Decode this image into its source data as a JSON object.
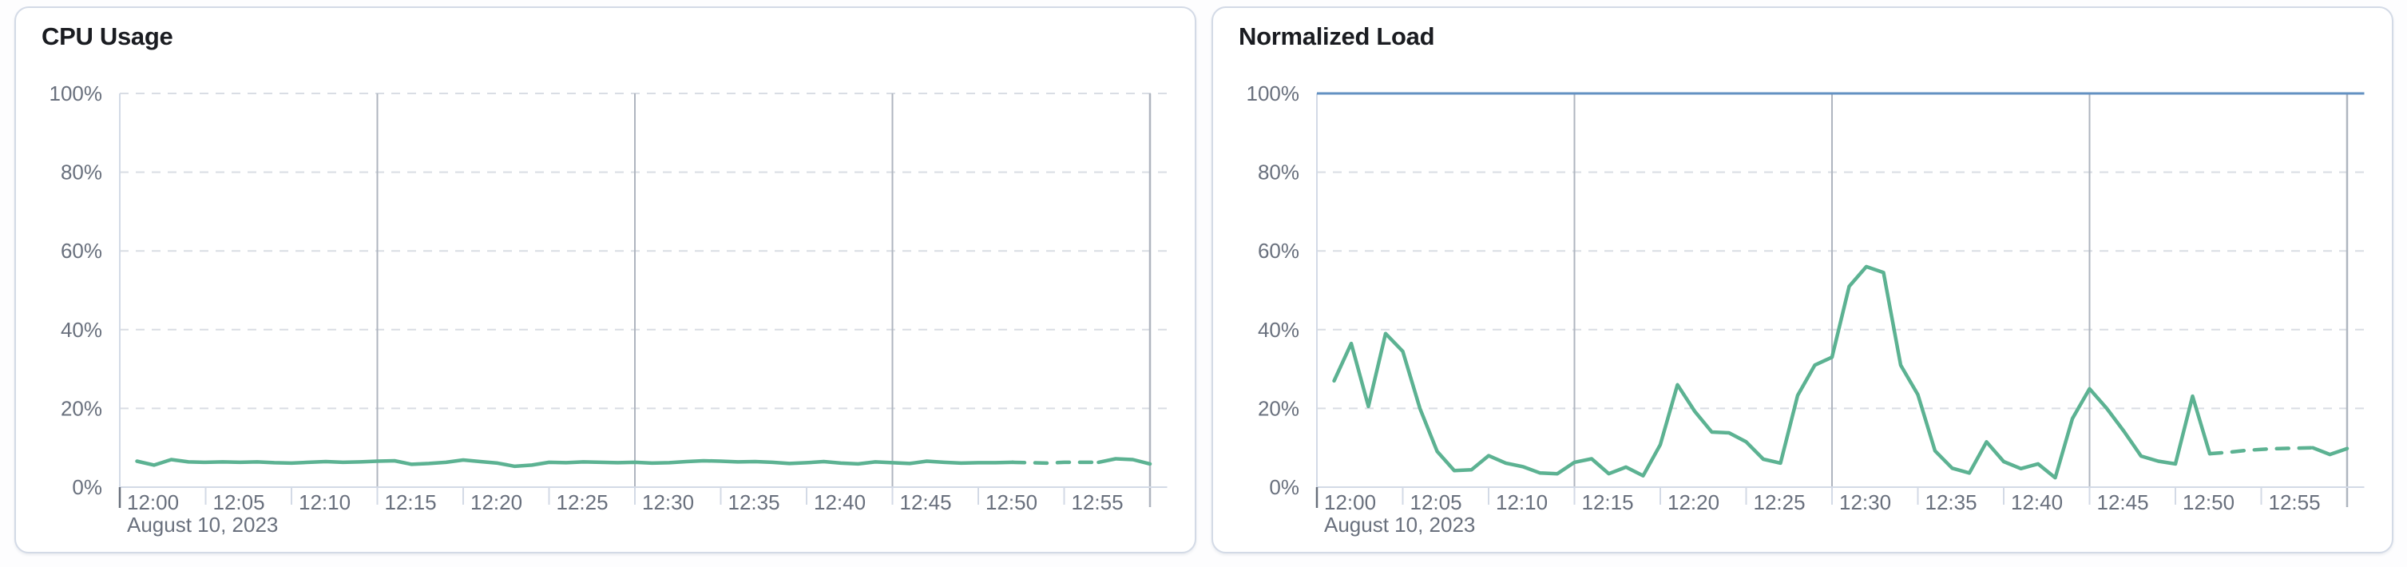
{
  "page": {
    "background": "#FDFDFE"
  },
  "palette": {
    "series_green": "#5CB292",
    "threshold_blue": "#6391C2",
    "grid_dashed": "#D9DDE4",
    "grid_solid": "#AFB5BF",
    "axis_line": "#D3DAE6",
    "axis_text": "#69707D",
    "origin_tick": "#69707D",
    "title_text": "#1A1C21",
    "card_border": "#D3DAE6",
    "card_background": "#FFFFFF"
  },
  "chart_data": [
    {
      "type": "line",
      "title": "CPU Usage",
      "xlabel": "",
      "ylabel": "",
      "ylim": [
        0,
        100
      ],
      "x_domain_minutes": [
        0,
        60
      ],
      "y_tick_labels": [
        "0%",
        "20%",
        "40%",
        "60%",
        "80%",
        "100%"
      ],
      "y_tick_values": [
        0,
        20,
        40,
        60,
        80,
        100
      ],
      "x_tick_labels": [
        "12:00",
        "12:05",
        "12:10",
        "12:15",
        "12:20",
        "12:25",
        "12:30",
        "12:35",
        "12:40",
        "12:45",
        "12:50",
        "12:55"
      ],
      "x_date_label": "August 10, 2023",
      "grid": "horizontal-dashed; vertical solid at 15-min marks and domain end",
      "legend_position": "none",
      "threshold_line_at": null,
      "series": [
        {
          "name": "cpu-usage-percent",
          "unit": "%",
          "start_minute": 1,
          "step_minutes": 1,
          "dash_from_minute": 52,
          "dash_to_minute": 57,
          "values": [
            6.6,
            5.6,
            7.0,
            6.4,
            6.3,
            6.4,
            6.3,
            6.4,
            6.2,
            6.1,
            6.3,
            6.5,
            6.3,
            6.4,
            6.6,
            6.7,
            5.8,
            6.0,
            6.3,
            6.9,
            6.5,
            6.1,
            5.3,
            5.6,
            6.3,
            6.2,
            6.4,
            6.3,
            6.2,
            6.3,
            6.1,
            6.2,
            6.5,
            6.7,
            6.6,
            6.4,
            6.5,
            6.3,
            6.0,
            6.2,
            6.5,
            6.1,
            5.9,
            6.4,
            6.2,
            6.0,
            6.6,
            6.3,
            6.1,
            6.2,
            6.2,
            6.3,
            6.2,
            6.1,
            6.3,
            6.3,
            6.3,
            7.2,
            7.0,
            5.9
          ]
        }
      ]
    },
    {
      "type": "line",
      "title": "Normalized Load",
      "xlabel": "",
      "ylabel": "",
      "ylim": [
        0,
        100
      ],
      "x_domain_minutes": [
        0,
        60
      ],
      "y_tick_labels": [
        "0%",
        "20%",
        "40%",
        "60%",
        "80%",
        "100%"
      ],
      "y_tick_values": [
        0,
        20,
        40,
        60,
        80,
        100
      ],
      "x_tick_labels": [
        "12:00",
        "12:05",
        "12:10",
        "12:15",
        "12:20",
        "12:25",
        "12:30",
        "12:35",
        "12:40",
        "12:45",
        "12:50",
        "12:55"
      ],
      "x_date_label": "August 10, 2023",
      "grid": "horizontal-dashed; vertical solid at 15-min marks and domain end",
      "legend_position": "none",
      "threshold_line_at": 100,
      "series": [
        {
          "name": "normalized-load-percent",
          "unit": "%",
          "start_minute": 1,
          "step_minutes": 1,
          "dash_from_minute": 52,
          "dash_to_minute": 58,
          "values": [
            27,
            36.5,
            20.5,
            39,
            34.5,
            20,
            9.1,
            4.2,
            4.4,
            8,
            6.1,
            5.2,
            3.6,
            3.4,
            6.3,
            7.2,
            3.4,
            5.1,
            2.9,
            10.8,
            26,
            19.3,
            14,
            13.8,
            11.5,
            7.1,
            6.1,
            23.3,
            31,
            33,
            51,
            56,
            54.5,
            31,
            23.5,
            9.2,
            4.8,
            3.6,
            11.5,
            6.5,
            4.7,
            5.9,
            2.4,
            17.4,
            25,
            20,
            14.2,
            7.9,
            6.6,
            5.9,
            23.1,
            8.5,
            8.8,
            9.3,
            9.6,
            9.8,
            9.9,
            10,
            8.3,
            9.8
          ]
        }
      ]
    }
  ]
}
